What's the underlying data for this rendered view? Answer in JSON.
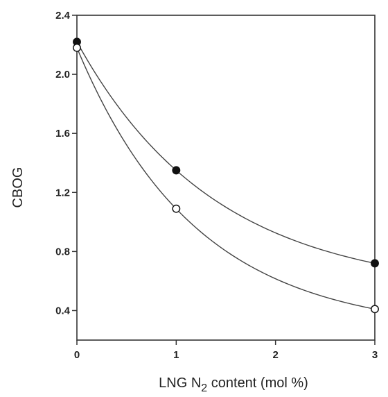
{
  "chart_data": {
    "type": "scatter",
    "title": "",
    "xlabel_parts": [
      "LNG N",
      "2",
      " content (mol %)"
    ],
    "ylabel": "CBOG",
    "xlim": [
      0,
      3
    ],
    "ylim": [
      0.2,
      2.4
    ],
    "xticks": [
      "0",
      "1",
      "2",
      "3"
    ],
    "yticks": [
      "0.4",
      "0.8",
      "1.2",
      "1.6",
      "2.0",
      "2.4"
    ],
    "grid": false,
    "legend": "none",
    "series": [
      {
        "marker": "filled-circle",
        "color": "#111111",
        "x": [
          0,
          1,
          3
        ],
        "y": [
          2.22,
          1.35,
          0.72
        ]
      },
      {
        "marker": "open-circle",
        "color": "#111111",
        "x": [
          0,
          1,
          3
        ],
        "y": [
          2.18,
          1.09,
          0.41
        ]
      }
    ]
  }
}
